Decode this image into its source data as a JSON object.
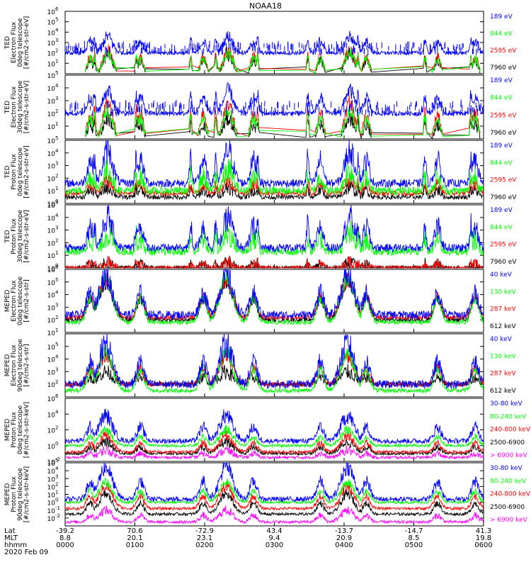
{
  "figure": {
    "title": "NOAA18",
    "date_label": "2020 Feb 09"
  },
  "colors": {
    "black": "#000000",
    "red": "#ff0000",
    "green": "#00ff00",
    "blue": "#0000ff",
    "magenta": "#ff00ff"
  },
  "time_axis": {
    "row_labels": [
      "Lat",
      "MLT",
      "hhmm"
    ],
    "ticks": [
      {
        "lat": "-39.2",
        "mlt": "8.8",
        "hhmm": "0000"
      },
      {
        "lat": "70.6",
        "mlt": "20.1",
        "hhmm": "0100"
      },
      {
        "lat": "-72.9",
        "mlt": "23.1",
        "hhmm": "0200"
      },
      {
        "lat": "43.4",
        "mlt": "9.4",
        "hhmm": "0300"
      },
      {
        "lat": "-13.7",
        "mlt": "20.9",
        "hhmm": "0400"
      },
      {
        "lat": "-14.7",
        "mlt": "8.5",
        "hhmm": "0500"
      },
      {
        "lat": "41.3",
        "mlt": "19.8",
        "hhmm": "0600"
      }
    ]
  },
  "chart_data": [
    {
      "type": "line",
      "ylabel": [
        "TED",
        "Electron Flux",
        "0deg telescope",
        "[#/cm2-s-str-eV]"
      ],
      "y_scale": "log",
      "ylim_exp": [
        0,
        6
      ],
      "ytick_exps": [
        1,
        2,
        3,
        4,
        5,
        6
      ],
      "x_domain": [
        "0000",
        "0600"
      ],
      "series": [
        {
          "name": "7960 eV",
          "color": "black",
          "base": 0.0,
          "peak": 1.8,
          "mode": "te"
        },
        {
          "name": "2595 eV",
          "color": "red",
          "base": 0.0,
          "peak": 2.3,
          "mode": "te"
        },
        {
          "name": "844 eV",
          "color": "green",
          "base": 0.0,
          "peak": 2.0,
          "mode": "te"
        },
        {
          "name": "189 eV",
          "color": "blue",
          "base": 2.0,
          "peak": 3.6,
          "mode": "tes"
        }
      ]
    },
    {
      "type": "line",
      "ylabel": [
        "TED",
        "Electron Flux",
        "30deg telescope",
        "[#/cm2-s-str-eV]"
      ],
      "y_scale": "log",
      "ylim_exp": [
        0,
        5
      ],
      "ytick_exps": [
        1,
        2,
        3,
        4,
        5
      ],
      "x_domain": [
        "0000",
        "0600"
      ],
      "series": [
        {
          "name": "7960 eV",
          "color": "black",
          "base": 0.0,
          "peak": 1.6,
          "mode": "te"
        },
        {
          "name": "2595 eV",
          "color": "red",
          "base": 0.0,
          "peak": 2.8,
          "mode": "te"
        },
        {
          "name": "844 eV",
          "color": "green",
          "base": 0.0,
          "peak": 2.3,
          "mode": "te"
        },
        {
          "name": "189 eV",
          "color": "blue",
          "base": 2.0,
          "peak": 3.8,
          "mode": "tes"
        }
      ]
    },
    {
      "type": "line",
      "ylabel": [
        "TED",
        "Proton Flux",
        "0deg telescope",
        "[#/cm2-s-str-eV]"
      ],
      "y_scale": "log",
      "ylim_exp": [
        0,
        5
      ],
      "ytick_exps": [
        0,
        1,
        2,
        3,
        4,
        5
      ],
      "x_domain": [
        "0000",
        "0600"
      ],
      "series": [
        {
          "name": "7960 eV",
          "color": "black",
          "base": 0.5,
          "peak": 1.3,
          "mode": "tp"
        },
        {
          "name": "2595 eV",
          "color": "red",
          "base": 0.8,
          "peak": 1.8,
          "mode": "tp"
        },
        {
          "name": "844 eV",
          "color": "green",
          "base": 1.0,
          "peak": 2.6,
          "mode": "tpg"
        },
        {
          "name": "189 eV",
          "color": "blue",
          "base": 1.6,
          "peak": 4.2,
          "mode": "tpb"
        }
      ]
    },
    {
      "type": "line",
      "ylabel": [
        "TED",
        "Proton Flux",
        "30deg telescope",
        "[#/cm2-s-str-eV]"
      ],
      "y_scale": "log",
      "ylim_exp": [
        0,
        5
      ],
      "ytick_exps": [
        0,
        1,
        2,
        3,
        4,
        5
      ],
      "x_domain": [
        "0000",
        "0600"
      ],
      "series": [
        {
          "name": "7960 eV",
          "color": "black",
          "base": 0.0,
          "peak": 0.4,
          "mode": "tp"
        },
        {
          "name": "2595 eV",
          "color": "red",
          "base": 0.0,
          "peak": 0.4,
          "mode": "tp"
        },
        {
          "name": "844 eV",
          "color": "green",
          "base": 1.3,
          "peak": 2.7,
          "mode": "tpg"
        },
        {
          "name": "189 eV",
          "color": "blue",
          "base": 1.6,
          "peak": 4.0,
          "mode": "tpb"
        }
      ]
    },
    {
      "type": "line",
      "ylabel": [
        "MEPED",
        "Electron Flux",
        "0deg telescope",
        "[#/cm2-s-str]"
      ],
      "y_scale": "log",
      "ylim_exp": [
        1,
        6
      ],
      "ytick_exps": [
        1,
        2,
        3,
        4,
        5,
        6
      ],
      "x_domain": [
        "0000",
        "0600"
      ],
      "series": [
        {
          "name": "612 keV",
          "color": "black",
          "base": 2.0,
          "peak": 5.0,
          "mode": "m"
        },
        {
          "name": "287 keV",
          "color": "red",
          "base": 2.2,
          "peak": 5.2,
          "mode": "m"
        },
        {
          "name": "130 keV",
          "color": "green",
          "base": 1.8,
          "peak": 5.3,
          "mode": "m"
        },
        {
          "name": "40 keV",
          "color": "blue",
          "base": 2.4,
          "peak": 5.5,
          "mode": "mb"
        }
      ]
    },
    {
      "type": "line",
      "ylabel": [
        "MEPED",
        "Electron Flux",
        "90deg telescope",
        "[#/cm2-s-str]"
      ],
      "y_scale": "log",
      "ylim_exp": [
        1,
        6
      ],
      "ytick_exps": [
        2,
        3,
        4,
        5
      ],
      "x_domain": [
        "0000",
        "0600"
      ],
      "series": [
        {
          "name": "612 keV",
          "color": "black",
          "base": 2.0,
          "peak": 3.0,
          "mode": "m"
        },
        {
          "name": "287 keV",
          "color": "red",
          "base": 2.0,
          "peak": 4.3,
          "mode": "m"
        },
        {
          "name": "130 keV",
          "color": "green",
          "base": 1.5,
          "peak": 4.6,
          "mode": "m"
        },
        {
          "name": "40 keV",
          "color": "blue",
          "base": 2.0,
          "peak": 5.2,
          "mode": "mb"
        }
      ]
    },
    {
      "type": "line",
      "ylabel": [
        "MEPED",
        "Proton Flux",
        "0deg telescope",
        "[#/cm2-s-str-keV]"
      ],
      "y_scale": "log",
      "ylim_exp": [
        -2,
        6
      ],
      "ytick_exps": [
        -2,
        0,
        2,
        4,
        6
      ],
      "x_domain": [
        "0000",
        "0600"
      ],
      "series": [
        {
          "name": "> 6900 keV",
          "color": "magenta",
          "base": -1.5,
          "peak": -0.6,
          "mode": "pp"
        },
        {
          "name": "2500-6900",
          "color": "black",
          "base": -1.0,
          "peak": 0.5,
          "mode": "pp"
        },
        {
          "name": "240-800 keV",
          "color": "red",
          "base": -0.8,
          "peak": 1.3,
          "mode": "pp"
        },
        {
          "name": "80-240 keV",
          "color": "green",
          "base": 0.0,
          "peak": 2.0,
          "mode": "pp"
        },
        {
          "name": "30-80 keV",
          "color": "blue",
          "base": 0.6,
          "peak": 3.8,
          "mode": "ppb"
        }
      ]
    },
    {
      "type": "line",
      "ylabel": [
        "MEPED",
        "Proton Flux",
        "90deg telescope",
        "[#/cm2-s-str-keV]"
      ],
      "y_scale": "log",
      "ylim_exp": [
        -3,
        5
      ],
      "ytick_exps": [
        -2,
        -1,
        0,
        1,
        2,
        3,
        4,
        5
      ],
      "x_domain": [
        "0000",
        "0600"
      ],
      "series": [
        {
          "name": "> 6900 keV",
          "color": "magenta",
          "base": -2.5,
          "peak": -1.0,
          "mode": "pp"
        },
        {
          "name": "2500-6900",
          "color": "black",
          "base": -1.5,
          "peak": 1.0,
          "mode": "pp"
        },
        {
          "name": "240-800 keV",
          "color": "red",
          "base": -0.8,
          "peak": 2.0,
          "mode": "pp"
        },
        {
          "name": "80-240 keV",
          "color": "green",
          "base": 0.0,
          "peak": 2.5,
          "mode": "pp"
        },
        {
          "name": "30-80 keV",
          "color": "blue",
          "base": 0.4,
          "peak": 4.5,
          "mode": "ppb"
        }
      ]
    }
  ]
}
